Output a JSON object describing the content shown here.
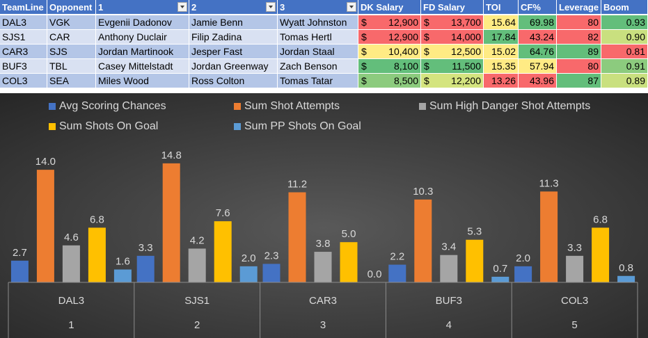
{
  "table": {
    "headers": [
      "TeamLine",
      "Opponent",
      "1",
      "2",
      "3",
      "DK Salary",
      "FD Salary",
      "TOI",
      "CF%",
      "Leverage",
      "Boom"
    ],
    "rows": [
      {
        "team": "DAL3",
        "opp": "VGK",
        "p1": "Evgenii Dadonov",
        "p2": "Jamie Benn",
        "p3": "Wyatt Johnston",
        "dk": "12,900",
        "fd": "13,700",
        "toi": "15.64",
        "cf": "69.98",
        "lev": "80",
        "boom": "0.93"
      },
      {
        "team": "SJS1",
        "opp": "CAR",
        "p1": "Anthony Duclair",
        "p2": "Filip Zadina",
        "p3": "Tomas Hertl",
        "dk": "12,900",
        "fd": "14,000",
        "toi": "17.84",
        "cf": "43.24",
        "lev": "82",
        "boom": "0.90"
      },
      {
        "team": "CAR3",
        "opp": "SJS",
        "p1": "Jordan Martinook",
        "p2": "Jesper Fast",
        "p3": "Jordan Staal",
        "dk": "10,400",
        "fd": "12,500",
        "toi": "15.02",
        "cf": "64.76",
        "lev": "89",
        "boom": "0.81"
      },
      {
        "team": "BUF3",
        "opp": "TBL",
        "p1": "Casey Mittelstadt",
        "p2": "Jordan Greenway",
        "p3": "Zach Benson",
        "dk": "8,100",
        "fd": "11,500",
        "toi": "15.35",
        "cf": "57.94",
        "lev": "80",
        "boom": "0.91"
      },
      {
        "team": "COL3",
        "opp": "SEA",
        "p1": "Miles Wood",
        "p2": "Ross Colton",
        "p3": "Tomas Tatar",
        "dk": "8,500",
        "fd": "12,200",
        "toi": "13.26",
        "cf": "43.96",
        "lev": "87",
        "boom": "0.89"
      }
    ],
    "currency_symbol": "$",
    "cell_colors": {
      "dk": [
        "#f8696b",
        "#f8696b",
        "#ffeb84",
        "#63be7b",
        "#8ccb7e"
      ],
      "fd": [
        "#f8696b",
        "#f8696b",
        "#ffeb84",
        "#63be7b",
        "#d4e47f"
      ],
      "toi": [
        "#ffeb84",
        "#63be7b",
        "#ffeb84",
        "#ffeb84",
        "#f8696b"
      ],
      "cf": [
        "#63be7b",
        "#f8696b",
        "#63be7b",
        "#ffeb84",
        "#f8696b"
      ],
      "lev": [
        "#f8696b",
        "#f8696b",
        "#63be7b",
        "#f8696b",
        "#63be7b"
      ],
      "boom": [
        "#63be7b",
        "#c9e07f",
        "#f8696b",
        "#8ccb7e",
        "#c9e07f"
      ]
    }
  },
  "chart_data": {
    "type": "bar",
    "categories": [
      {
        "label": "DAL3",
        "index": "1"
      },
      {
        "label": "SJS1",
        "index": "2"
      },
      {
        "label": "CAR3",
        "index": "3"
      },
      {
        "label": "BUF3",
        "index": "4"
      },
      {
        "label": "COL3",
        "index": "5"
      }
    ],
    "series": [
      {
        "name": "Avg Scoring Chances",
        "color": "#4472c4",
        "values": [
          2.7,
          3.3,
          2.3,
          2.2,
          2.0
        ]
      },
      {
        "name": "Sum Shot Attempts",
        "color": "#ed7d31",
        "values": [
          14.0,
          14.8,
          11.2,
          10.3,
          11.3
        ]
      },
      {
        "name": "Sum High Danger Shot Attempts",
        "color": "#a5a5a5",
        "values": [
          4.6,
          4.2,
          3.8,
          3.4,
          3.3
        ]
      },
      {
        "name": "Sum Shots On Goal",
        "color": "#ffc000",
        "values": [
          6.8,
          7.6,
          5.0,
          5.3,
          6.8
        ]
      },
      {
        "name": "Sum PP Shots On Goal",
        "color": "#5b9bd5",
        "values": [
          1.6,
          2.0,
          0.0,
          0.7,
          0.8
        ]
      }
    ],
    "legend_position": "top",
    "ylim": [
      0,
      16
    ],
    "grid": false
  }
}
